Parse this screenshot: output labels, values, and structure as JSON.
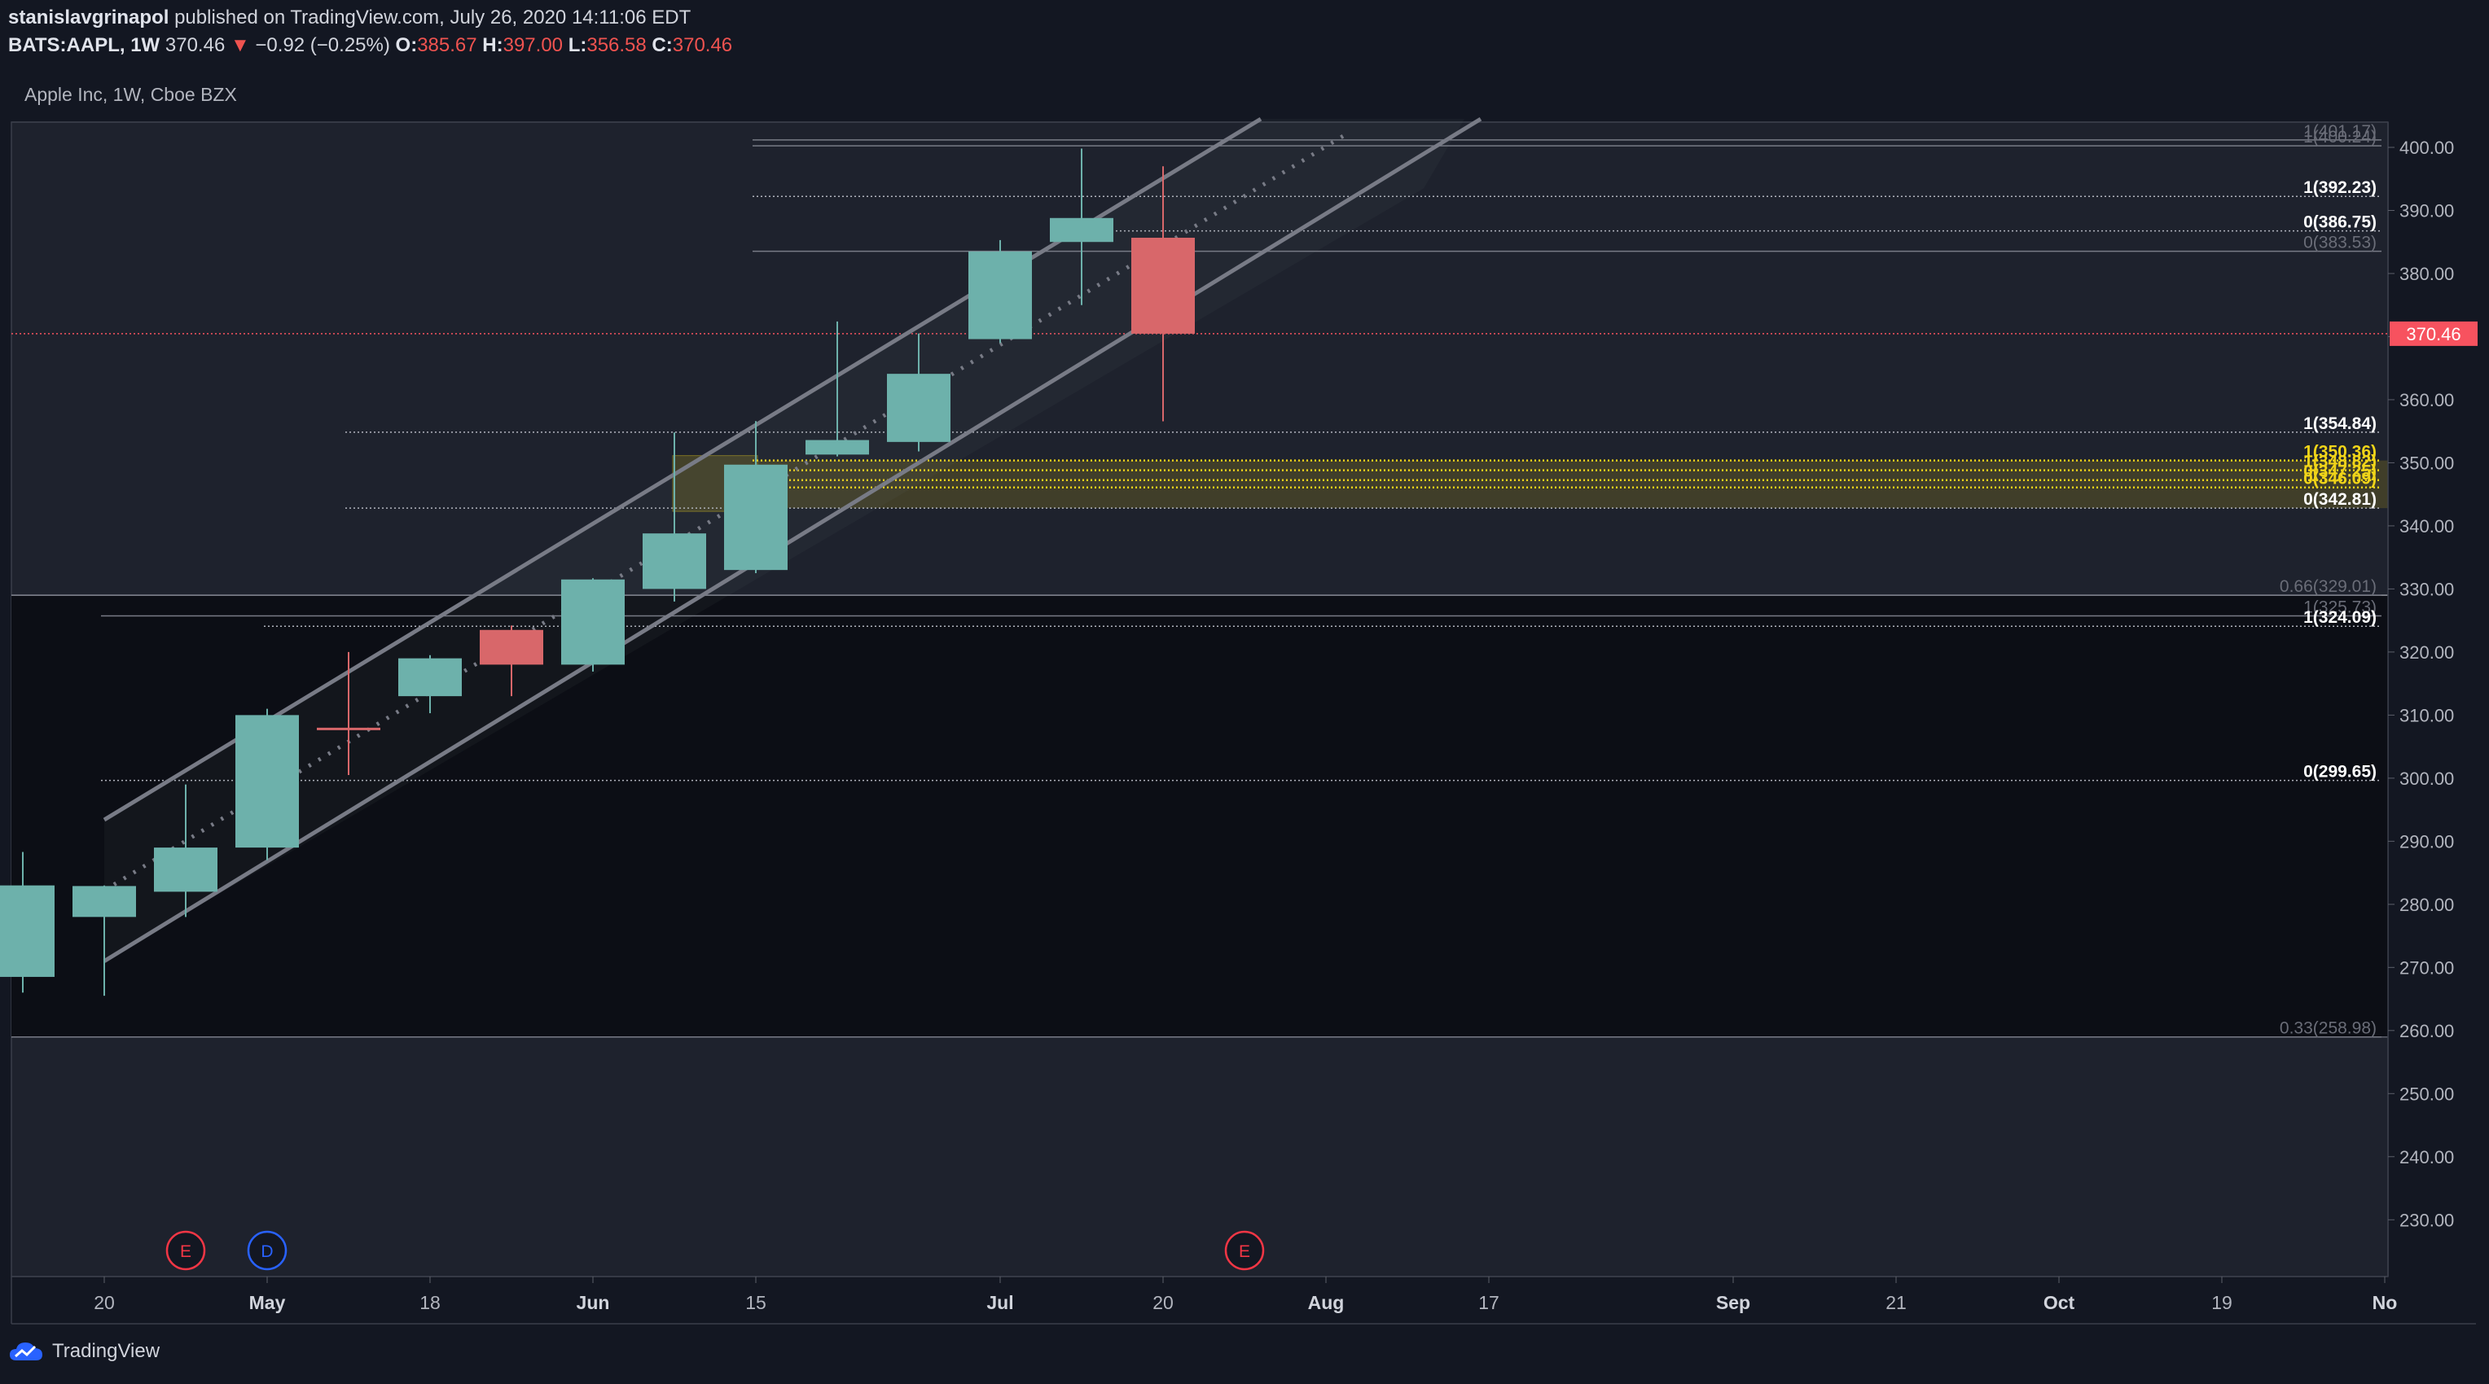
{
  "header": {
    "author": "stanislavgrinapol",
    "published_text": "published on TradingView.com, July 26, 2020 14:11:06 EDT",
    "symbol": "BATS:AAPL, 1W",
    "last": "370.46",
    "change_arrow": "▼",
    "change": "−0.92 (−0.25%)",
    "o_label": "O:",
    "o_value": "385.67",
    "h_label": "H:",
    "h_value": "397.00",
    "l_label": "L:",
    "l_value": "356.58",
    "c_label": "C:",
    "c_value": "370.46"
  },
  "legend": {
    "title": "Apple Inc, 1W, Cboe BZX"
  },
  "footer": {
    "brand": "TradingView"
  },
  "colors": {
    "background": "#131722",
    "upper_panel": "#1e222d",
    "lower_panel": "#0c0e15",
    "up": "#6db1ab",
    "down": "#d8676a",
    "channel": "#787b86",
    "fib_highlight": "#f0d419",
    "last_price": "#f7525f"
  },
  "chart_data": {
    "type": "candlestick",
    "interval": "1W",
    "price_axis": {
      "ylim": [
        221,
        404
      ],
      "ticks": [
        230,
        240,
        250,
        260,
        270,
        280,
        290,
        300,
        310,
        320,
        330,
        340,
        350,
        360,
        370,
        380,
        390,
        400
      ],
      "tick_labels": [
        "230.00",
        "240.00",
        "250.00",
        "260.00",
        "270.00",
        "280.00",
        "290.00",
        "300.00",
        "310.00",
        "320.00",
        "330.00",
        "340.00",
        "350.00",
        "360.00",
        "370.00",
        "380.00",
        "390.00",
        "400.00"
      ]
    },
    "time_axis": {
      "tick_labels": [
        "20",
        "May",
        "18",
        "Jun",
        "15",
        "Jul",
        "20",
        "Aug",
        "17",
        "Sep",
        "21",
        "Oct",
        "19",
        "No"
      ]
    },
    "candles": [
      {
        "week": "2020-04-13",
        "open": 268.5,
        "high": 288.3,
        "low": 266.0,
        "close": 283.0
      },
      {
        "week": "2020-04-20",
        "open": 278.0,
        "high": 283.0,
        "low": 265.5,
        "close": 282.9
      },
      {
        "week": "2020-04-27",
        "open": 282.0,
        "high": 299.0,
        "low": 278.0,
        "close": 289.0
      },
      {
        "week": "2020-05-04",
        "open": 289.0,
        "high": 311.0,
        "low": 287.0,
        "close": 310.0
      },
      {
        "week": "2020-05-11",
        "open": 308.0,
        "high": 320.0,
        "low": 300.5,
        "close": 307.7
      },
      {
        "week": "2020-05-18",
        "open": 313.0,
        "high": 319.5,
        "low": 310.3,
        "close": 319.0
      },
      {
        "week": "2020-05-25",
        "open": 323.5,
        "high": 324.2,
        "low": 313.0,
        "close": 318.0
      },
      {
        "week": "2020-06-01",
        "open": 318.0,
        "high": 331.7,
        "low": 316.9,
        "close": 331.5
      },
      {
        "week": "2020-06-08",
        "open": 330.0,
        "high": 354.8,
        "low": 328.0,
        "close": 338.8
      },
      {
        "week": "2020-06-15",
        "open": 333.0,
        "high": 356.6,
        "low": 332.5,
        "close": 349.7
      },
      {
        "week": "2020-06-22",
        "open": 351.3,
        "high": 372.4,
        "low": 351.0,
        "close": 353.6
      },
      {
        "week": "2020-06-29",
        "open": 353.3,
        "high": 370.5,
        "low": 351.8,
        "close": 364.1
      },
      {
        "week": "2020-07-06",
        "open": 369.6,
        "high": 385.3,
        "low": 369.0,
        "close": 383.5
      },
      {
        "week": "2020-07-13",
        "open": 385.0,
        "high": 399.8,
        "low": 375.0,
        "close": 388.8
      },
      {
        "week": "2020-07-20",
        "open": 385.67,
        "high": 397.0,
        "low": 356.58,
        "close": 370.46
      }
    ],
    "last_price": {
      "value": 370.46,
      "label": "370.46"
    },
    "fib_labels": [
      {
        "text": "1(401.17)",
        "price": 401.17,
        "style": "faint"
      },
      {
        "text": "1(400.24)",
        "price": 400.24,
        "style": "faint"
      },
      {
        "text": "1(392.23)",
        "price": 392.23,
        "style": "bright"
      },
      {
        "text": "0(386.75)",
        "price": 386.75,
        "style": "bright"
      },
      {
        "text": "0(383.53)",
        "price": 383.53,
        "style": "faint"
      },
      {
        "text": "1(354.84)",
        "price": 354.84,
        "style": "bright"
      },
      {
        "text": "1(350.36)",
        "price": 350.36,
        "style": "yellow"
      },
      {
        "text": "1(348.82)",
        "price": 348.82,
        "style": "yellow"
      },
      {
        "text": "0(347.25)",
        "price": 347.25,
        "style": "yellow"
      },
      {
        "text": "0(346.09)",
        "price": 346.09,
        "style": "yellow"
      },
      {
        "text": "0(342.81)",
        "price": 342.81,
        "style": "bright"
      },
      {
        "text": "0.66(329.01)",
        "price": 329.01,
        "style": "faint"
      },
      {
        "text": "1(325.73)",
        "price": 325.73,
        "style": "faint"
      },
      {
        "text": "1(324.09)",
        "price": 324.09,
        "style": "bright"
      },
      {
        "text": "0(299.65)",
        "price": 299.65,
        "style": "bright"
      },
      {
        "text": "0.33(258.98)",
        "price": 258.98,
        "style": "faint"
      }
    ],
    "zones": [
      {
        "name": "upper-range",
        "from": 329.01,
        "to": 404
      },
      {
        "name": "mid-range",
        "from": 258.98,
        "to": 329.01
      },
      {
        "name": "fib-highlight",
        "from": 342.81,
        "to": 350.36
      }
    ],
    "events": [
      {
        "letter": "E",
        "kind": "earnings",
        "week": "2020-04-27"
      },
      {
        "letter": "D",
        "kind": "dividend",
        "week": "2020-05-04"
      },
      {
        "letter": "E",
        "kind": "earnings",
        "week": "2020-07-27"
      }
    ]
  }
}
